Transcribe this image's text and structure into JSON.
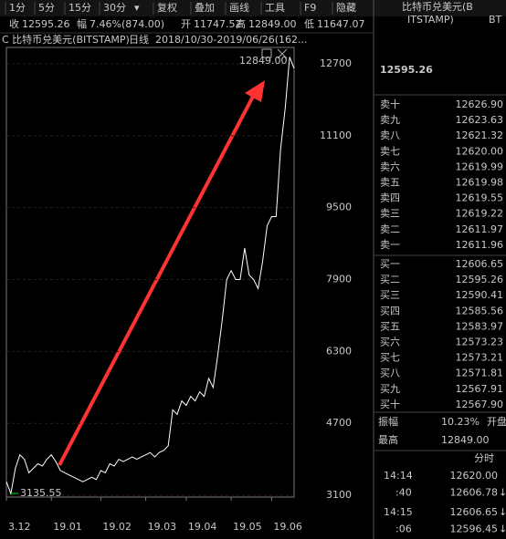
{
  "toolbar": [
    "1分",
    "5分",
    "15分",
    "30分",
    "复权",
    "叠加",
    "画线",
    "工具",
    "F9",
    "隐藏"
  ],
  "quote": [
    {
      "label": "收",
      "value": "12595.26"
    },
    {
      "label": "幅",
      "value": "7.46%(874.00)"
    },
    {
      "label": "开",
      "value": "11747.52"
    },
    {
      "label": "高",
      "value": "12849.00"
    },
    {
      "label": "低",
      "value": "11647.07"
    }
  ],
  "chart_header": {
    "name": "C 比特币兑美元(BITSTAMP)",
    "period": "日线",
    "range": "2018/10/30-2019/06/26(162..."
  },
  "chart_data": {
    "type": "line",
    "color": "#ffffff",
    "grid": true,
    "values": [
      3400,
      3135.55,
      3700,
      4000,
      3900,
      3600,
      3700,
      3800,
      3750,
      3900,
      4000,
      3850,
      3650,
      3600,
      3550,
      3500,
      3450,
      3400,
      3450,
      3500,
      3450,
      3650,
      3600,
      3800,
      3750,
      3900,
      3850,
      3900,
      3950,
      3900,
      3950,
      4000,
      4050,
      3950,
      4050,
      4100,
      4200,
      5000,
      4900,
      5200,
      5100,
      5300,
      5200,
      5400,
      5300,
      5700,
      5500,
      6200,
      7000,
      7900,
      8100,
      7900,
      7900,
      8600,
      8000,
      7900,
      7700,
      8300,
      9100,
      9300,
      9300,
      10800,
      11700,
      12849,
      12595.26
    ],
    "ylim": [
      3060,
      13065
    ],
    "yticks": [
      3100,
      4700,
      6300,
      7900,
      9500,
      11100,
      12700
    ],
    "xlim": [
      0,
      64
    ],
    "xticks": [
      {
        "value": 0,
        "label": "3.12"
      },
      {
        "value": 10,
        "label": "19.01"
      },
      {
        "value": 21,
        "label": "19.02"
      },
      {
        "value": 31,
        "label": "19.03"
      },
      {
        "value": 40,
        "label": "19.04"
      },
      {
        "value": 50,
        "label": "19.05"
      },
      {
        "value": 59,
        "label": "19.06"
      }
    ],
    "max_label": "12849.00",
    "min_label": "3135.55"
  },
  "side": {
    "title": "比特币兑美元(B",
    "title2": "ITSTAMP)",
    "code": "BT",
    "price": "12595.26",
    "book": [
      [
        "卖十",
        "12626.90"
      ],
      [
        "卖九",
        "12623.63"
      ],
      [
        "卖八",
        "12621.32"
      ],
      [
        "卖七",
        "12620.00"
      ],
      [
        "卖六",
        "12619.99"
      ],
      [
        "卖五",
        "12619.98"
      ],
      [
        "卖四",
        "12619.55"
      ],
      [
        "卖三",
        "12619.22"
      ],
      [
        "卖二",
        "12611.97"
      ],
      [
        "卖一",
        "12611.96"
      ],
      [
        "买一",
        "12606.65"
      ],
      [
        "买二",
        "12595.26"
      ],
      [
        "买三",
        "12590.41"
      ],
      [
        "买四",
        "12585.56"
      ],
      [
        "买五",
        "12583.97"
      ],
      [
        "买六",
        "12573.23"
      ],
      [
        "买七",
        "12573.21"
      ],
      [
        "买八",
        "12571.81"
      ],
      [
        "买九",
        "12567.91"
      ],
      [
        "买十",
        "12567.90"
      ]
    ],
    "stats": [
      [
        "振幅",
        "10.23%",
        "开盘"
      ],
      [
        "最高",
        "12849.00",
        ""
      ]
    ],
    "ticks_title": "分时",
    "trades": [
      [
        "14:14",
        "12620.00",
        ""
      ],
      [
        ":40",
        "12606.78",
        "↓"
      ],
      [
        "14:15",
        "12606.65",
        "↓"
      ],
      [
        ":06",
        "12596.45",
        "↓"
      ]
    ]
  }
}
